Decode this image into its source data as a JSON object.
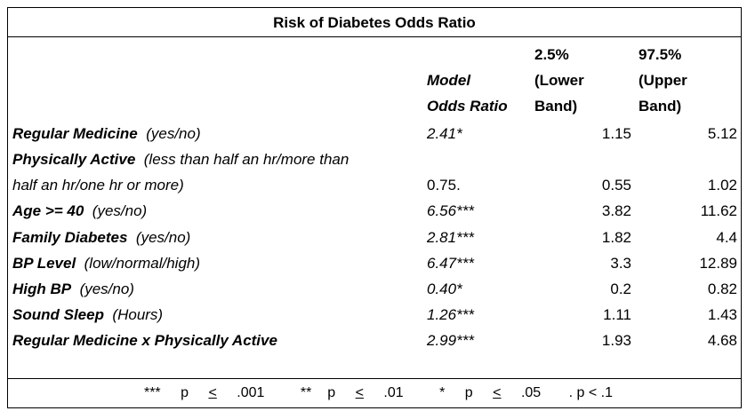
{
  "title": "Risk of Diabetes Odds Ratio",
  "headers": {
    "model_line1": "Model",
    "model_line2": "Odds Ratio",
    "lower_line1": "2.5%",
    "lower_line2": "(Lower",
    "lower_line3": "Band)",
    "upper_line1": "97.5%",
    "upper_line2": "(Upper",
    "upper_line3": "Band)"
  },
  "rows": [
    {
      "name": "Regular Medicine",
      "desc": "(yes/no)",
      "or": "2.41*",
      "lower": "1.15",
      "upper": "5.12"
    },
    {
      "name": "Physically Active",
      "desc": "(less than half an hr/more than",
      "or": "",
      "lower": "",
      "upper": ""
    },
    {
      "name": "",
      "desc": "half an hr/one hr or more)",
      "or": "0.75.",
      "lower": "0.55",
      "upper": "1.02"
    },
    {
      "name": "Age >= 40",
      "desc": "(yes/no)",
      "or": "6.56***",
      "lower": "3.82",
      "upper": "11.62"
    },
    {
      "name": "Family Diabetes",
      "desc": "(yes/no)",
      "or": "2.81***",
      "lower": "1.82",
      "upper": "4.4"
    },
    {
      "name": "BP Level",
      "desc": "(low/normal/high)",
      "or": "6.47***",
      "lower": "3.3",
      "upper": "12.89"
    },
    {
      "name": "High BP",
      "desc": "(yes/no)",
      "or": "0.40*",
      "lower": "0.2",
      "upper": "0.82"
    },
    {
      "name": "Sound Sleep",
      "desc": "(Hours)",
      "or": "1.26***",
      "lower": "1.11",
      "upper": "1.43"
    },
    {
      "name": "Regular Medicine x Physically Active",
      "desc": "",
      "or": "2.99***",
      "lower": "1.93",
      "upper": "4.68"
    }
  ],
  "footnote": {
    "sig1_stars": "***",
    "sig1_text": " p ",
    "sig1_op": "<",
    "sig1_val": " .001",
    "sig2_stars": "**",
    "sig2_text": "p ",
    "sig2_op": "<",
    "sig2_val": " .01",
    "sig3_stars": "*",
    "sig3_text": " p ",
    "sig3_op": "<",
    "sig3_val": " .05",
    "sig4": ". p < .1"
  }
}
